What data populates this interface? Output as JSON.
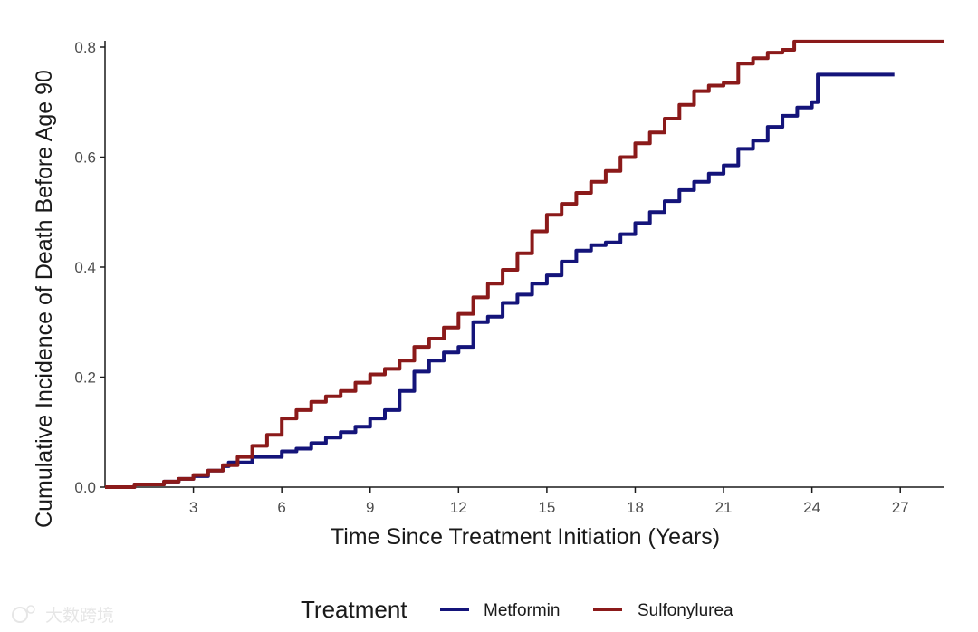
{
  "chart_data": {
    "type": "line",
    "title": "",
    "xlabel": "Time Since Treatment Initiation (Years)",
    "ylabel": "Cumulative Incidence of Death Before Age 90",
    "xlim": [
      0,
      28.5
    ],
    "ylim": [
      0,
      0.81
    ],
    "x_ticks": [
      3,
      6,
      9,
      12,
      15,
      18,
      21,
      24,
      27
    ],
    "x_tick_labels": [
      "3",
      "6",
      "9",
      "12",
      "15",
      "18",
      "21",
      "24",
      "27"
    ],
    "y_ticks": [
      0,
      0.2,
      0.4,
      0.6,
      0.8
    ],
    "y_tick_labels": [
      "0.0",
      "0.2",
      "0.4",
      "0.6",
      "0.8"
    ],
    "grid": false,
    "legend": {
      "title": "Treatment",
      "position": "bottom"
    },
    "series": [
      {
        "name": "Metformin",
        "color": "#14147a",
        "x": [
          0,
          1,
          2,
          2.5,
          3,
          3.5,
          4,
          4.2,
          5,
          6,
          6.5,
          7,
          7.5,
          8,
          8.5,
          9,
          9.5,
          10,
          10.5,
          11,
          11.5,
          12,
          12.5,
          13,
          13.5,
          14,
          14.5,
          15,
          15.5,
          16,
          16.5,
          17,
          17.5,
          18,
          18.5,
          19,
          19.5,
          20,
          20.5,
          21,
          21.5,
          22,
          22.5,
          23,
          23.5,
          24,
          24.2,
          25,
          26,
          26.8
        ],
        "y": [
          0,
          0.005,
          0.01,
          0.015,
          0.02,
          0.03,
          0.038,
          0.045,
          0.055,
          0.065,
          0.07,
          0.08,
          0.09,
          0.1,
          0.11,
          0.125,
          0.14,
          0.175,
          0.21,
          0.23,
          0.245,
          0.255,
          0.3,
          0.31,
          0.335,
          0.35,
          0.37,
          0.385,
          0.41,
          0.43,
          0.44,
          0.445,
          0.46,
          0.48,
          0.5,
          0.52,
          0.54,
          0.555,
          0.57,
          0.585,
          0.615,
          0.63,
          0.655,
          0.675,
          0.69,
          0.7,
          0.75,
          0.75,
          0.75,
          0.75
        ]
      },
      {
        "name": "Sulfonylurea",
        "color": "#8b1a1a",
        "x": [
          0,
          1,
          2,
          2.5,
          3,
          3.5,
          4,
          4.5,
          5,
          5.5,
          6,
          6.5,
          7,
          7.5,
          8,
          8.5,
          9,
          9.5,
          10,
          10.5,
          11,
          11.5,
          12,
          12.5,
          13,
          13.5,
          14,
          14.5,
          15,
          15.5,
          16,
          16.5,
          17,
          17.5,
          18,
          18.5,
          19,
          19.5,
          20,
          20.5,
          21,
          21.5,
          22,
          22.5,
          23,
          23.4,
          24,
          25,
          26,
          27,
          28.5
        ],
        "y": [
          0,
          0.005,
          0.01,
          0.015,
          0.022,
          0.03,
          0.04,
          0.055,
          0.075,
          0.095,
          0.125,
          0.14,
          0.155,
          0.165,
          0.175,
          0.19,
          0.205,
          0.215,
          0.23,
          0.255,
          0.27,
          0.29,
          0.315,
          0.345,
          0.37,
          0.395,
          0.425,
          0.465,
          0.495,
          0.515,
          0.535,
          0.555,
          0.575,
          0.6,
          0.625,
          0.645,
          0.67,
          0.695,
          0.72,
          0.73,
          0.735,
          0.77,
          0.78,
          0.79,
          0.795,
          0.81,
          0.81,
          0.81,
          0.81,
          0.81,
          0.81
        ]
      }
    ]
  },
  "watermark": {
    "text": "大数跨境"
  }
}
